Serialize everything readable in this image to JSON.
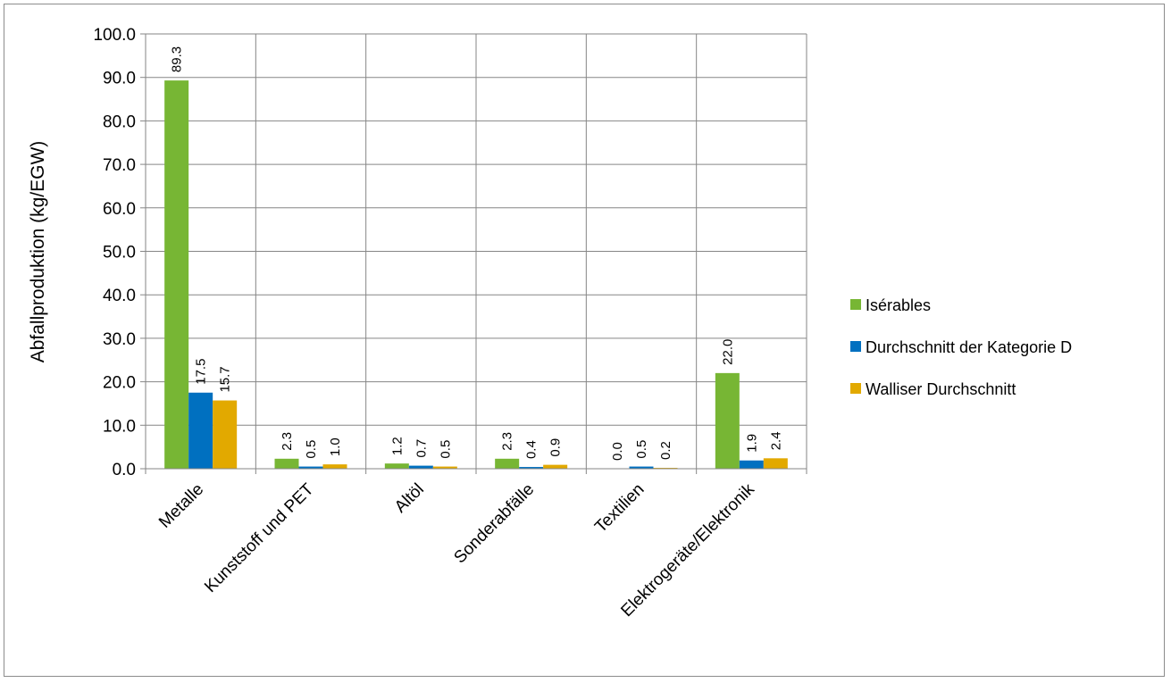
{
  "chart_data": {
    "type": "bar",
    "title": "",
    "xlabel": "",
    "ylabel": "Abfallproduktion (kg/EGW)",
    "ylim": [
      0,
      100
    ],
    "yticks": [
      "0.0",
      "10.0",
      "20.0",
      "30.0",
      "40.0",
      "50.0",
      "60.0",
      "70.0",
      "80.0",
      "90.0",
      "100.0"
    ],
    "grid": true,
    "legend_position": "right",
    "categories": [
      "Metalle",
      "Kunststoff und PET",
      "Altöl",
      "Sonderabfälle",
      "Textilien",
      "Elektrogeräte/Elektronik"
    ],
    "series": [
      {
        "name": "Isérables",
        "color": "#77b634",
        "values": [
          89.3,
          2.3,
          1.2,
          2.3,
          0.0,
          22.0
        ],
        "labels": [
          "89.3",
          "2.3",
          "1.2",
          "2.3",
          "0.0",
          "22.0"
        ]
      },
      {
        "name": "Durchschnitt der Kategorie D",
        "color": "#0070c0",
        "values": [
          17.5,
          0.5,
          0.7,
          0.4,
          0.5,
          1.9
        ],
        "labels": [
          "17.5",
          "0.5",
          "0.7",
          "0.4",
          "0.5",
          "1.9"
        ]
      },
      {
        "name": "Walliser Durchschnitt",
        "color": "#e2a900",
        "values": [
          15.7,
          1.0,
          0.5,
          0.9,
          0.2,
          2.4
        ],
        "labels": [
          "15.7",
          "1.0",
          "0.5",
          "0.9",
          "0.2",
          "2.4"
        ]
      }
    ]
  }
}
